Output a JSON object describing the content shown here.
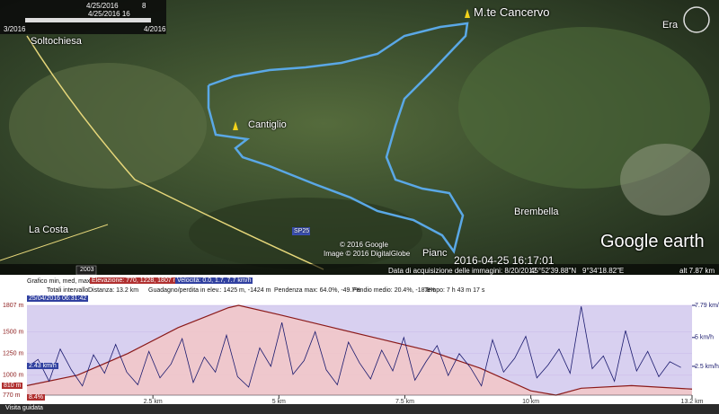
{
  "map": {
    "timeline": {
      "start_date": "4/25/2016",
      "index": "8",
      "current": "4/25/2016 16",
      "left": "3/2016",
      "right": "4/2016"
    },
    "places": [
      "Soltochiesa",
      "M.te Cancervo",
      "Era",
      "Cantiglio",
      "Brembella",
      "La Costa"
    ],
    "road": "SP25",
    "year_badge": "2003",
    "copyright": [
      "© 2016 Google",
      "Image © 2016 DigitalGlobe"
    ],
    "end_place": "Pianc",
    "timestamp": "2016-04-25 16:17:01",
    "logo": "Google earth",
    "status": {
      "acquisition": "Data di acquisizione delle immagini: 8/20/2012",
      "lat": "45°52'39.88\"N",
      "lon": "9°34'18.82\"E",
      "alt": "alt 7.87 km"
    }
  },
  "profile": {
    "header": {
      "graph": "Grafico min, med, max",
      "elevation": "Elevazione: 770, 1228, 1807 m",
      "speed": "Velocità: 0.0, 1.7, 7.7 km/h",
      "totals": "Totali intervallo",
      "distance": "Distanza: 13.2 km",
      "gain": "Guadagno/perdita in elev.: 1425 m, -1424 m",
      "max_slope": "Pendenza max: 64.0%, -49.7%",
      "avg_slope": "Pendio medio: 20.4%, -18.8%",
      "time": "Tempo: 7 h 43 m 17 s"
    },
    "cursor": {
      "date": "25/04/2016 06:31:42",
      "elevation": "810 m",
      "slope": "8.4%",
      "speed": "2.43 km/h"
    },
    "xlim": [
      0,
      13.2
    ],
    "ylim": [
      770,
      1807
    ],
    "y2lim": [
      0,
      7.79
    ],
    "xticks": [
      {
        "value": 2.5,
        "label": "2.5 km"
      },
      {
        "value": 5,
        "label": "5 km"
      },
      {
        "value": 7.5,
        "label": "7.5 km"
      },
      {
        "value": 10,
        "label": "10 km"
      },
      {
        "value": 13.2,
        "label": "13.2 km"
      }
    ],
    "yticks": [
      {
        "value": 1807,
        "label": "1807 m"
      },
      {
        "value": 1500,
        "label": "1500 m"
      },
      {
        "value": 1250,
        "label": "1250 m"
      },
      {
        "value": 1000,
        "label": "1000 m"
      },
      {
        "value": 770,
        "label": "770 m"
      }
    ],
    "y2ticks": [
      {
        "value": 7.79,
        "label": "7.79 km/h"
      },
      {
        "value": 5,
        "label": "5 km/h"
      },
      {
        "value": 2.5,
        "label": "2.5 km/h"
      }
    ],
    "elevation_x": [
      0,
      1,
      2,
      3,
      4,
      4.2,
      5,
      6,
      7,
      8,
      9,
      10,
      10.5,
      11,
      12,
      13.2
    ],
    "elevation": [
      880,
      1000,
      1250,
      1550,
      1780,
      1807,
      1700,
      1560,
      1420,
      1280,
      1080,
      820,
      770,
      850,
      880,
      840
    ],
    "elevation_color": "#8b1a1a",
    "speed_x": [
      0,
      0.22,
      0.44,
      0.66,
      0.88,
      1.1,
      1.32,
      1.54,
      1.76,
      1.98,
      2.2,
      2.42,
      2.64,
      2.86,
      3.08,
      3.3,
      3.52,
      3.74,
      3.96,
      4.18,
      4.4,
      4.62,
      4.84,
      5.06,
      5.28,
      5.5,
      5.72,
      5.94,
      6.16,
      6.38,
      6.6,
      6.82,
      7.04,
      7.26,
      7.48,
      7.7,
      7.92,
      8.14,
      8.36,
      8.58,
      8.8,
      9.02,
      9.24,
      9.46,
      9.68,
      9.9,
      10.12,
      10.34,
      10.56,
      10.78,
      11,
      11.22,
      11.44,
      11.66,
      11.88,
      12.1,
      12.32,
      12.54,
      12.76,
      12.98
    ],
    "speed": [
      2.4,
      3.1,
      1.2,
      4.0,
      2.2,
      0.8,
      3.5,
      1.9,
      4.4,
      2.0,
      0.9,
      3.8,
      1.5,
      2.7,
      4.9,
      1.1,
      3.3,
      2.0,
      5.2,
      1.6,
      0.7,
      4.1,
      2.5,
      6.3,
      1.8,
      3.0,
      5.5,
      2.2,
      0.9,
      4.6,
      2.8,
      1.4,
      3.9,
      2.1,
      5.0,
      1.3,
      2.9,
      4.3,
      1.7,
      3.6,
      2.4,
      0.8,
      4.8,
      2.0,
      3.2,
      5.1,
      1.5,
      2.6,
      4.0,
      1.9,
      7.7,
      2.3,
      3.4,
      1.2,
      5.6,
      2.1,
      3.8,
      1.6,
      2.9,
      2.4
    ],
    "speed_color": "#1a1a6e"
  },
  "footer": {
    "tour": "Visita guidata"
  }
}
